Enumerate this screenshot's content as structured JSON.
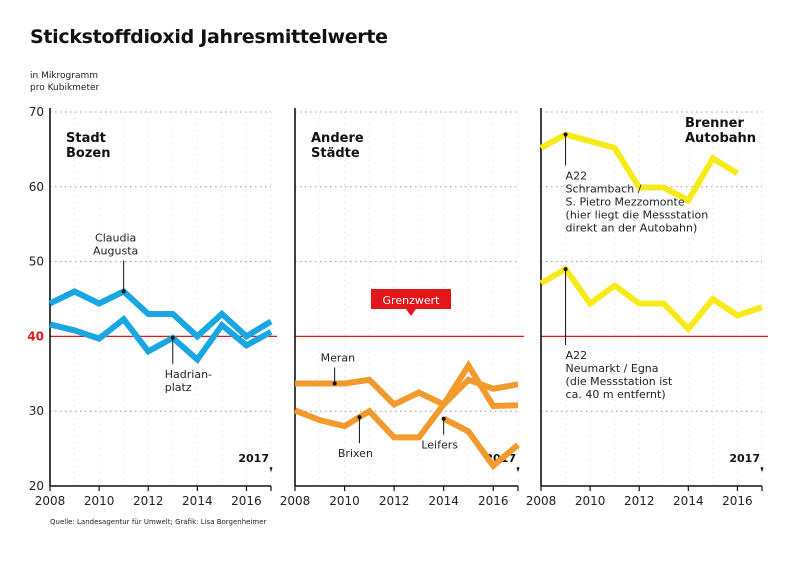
{
  "title": "Stickstoffdioxid Jahresmittelwerte",
  "unit_line1": "in Mikrogramm",
  "unit_line2": "pro Kubikmeter",
  "source": "Quelle: Landesagentur für Umwelt; Grafik: Lisa Borgenheimer",
  "chart_data": [
    {
      "type": "line",
      "panel_title": [
        "Stadt",
        "Bozen"
      ],
      "color": "#1aa6e0",
      "ylim": [
        20,
        70
      ],
      "xlim": [
        2008,
        2017
      ],
      "yticks": [
        20,
        30,
        40,
        50,
        60,
        70
      ],
      "xticks": [
        2008,
        2010,
        2012,
        2014,
        2016
      ],
      "end_label": "2017",
      "series": [
        {
          "name": "Claudia Augusta",
          "label": [
            "Claudia",
            "Augusta"
          ],
          "marker_year": 2011,
          "x": [
            2008,
            2009,
            2010,
            2011,
            2012,
            2013,
            2014,
            2015,
            2016,
            2017
          ],
          "values": [
            44.4,
            46,
            44.4,
            46,
            43,
            43,
            40,
            43,
            40,
            42
          ]
        },
        {
          "name": "Hadrianplatz",
          "label": [
            "Hadrian-",
            "platz"
          ],
          "marker_year": 2013,
          "x": [
            2008,
            2009,
            2010,
            2011,
            2012,
            2013,
            2014,
            2015,
            2016,
            2017
          ],
          "values": [
            41.6,
            40.8,
            39.7,
            42.3,
            38,
            39.8,
            36.9,
            41.5,
            38.8,
            40.6
          ]
        }
      ]
    },
    {
      "type": "line",
      "panel_title": [
        "Andere",
        "Städte"
      ],
      "color": "#f39a2c",
      "ylim": [
        20,
        70
      ],
      "xlim": [
        2008,
        2017
      ],
      "xticks": [
        2008,
        2010,
        2012,
        2014,
        2016
      ],
      "end_label": "2017",
      "series": [
        {
          "name": "Meran",
          "label": [
            "Meran"
          ],
          "marker_year": 2009.6,
          "x": [
            2008,
            2009,
            2010,
            2011,
            2012,
            2013,
            2014,
            2015,
            2016,
            2017
          ],
          "values": [
            33.7,
            33.7,
            33.7,
            34.2,
            30.9,
            32.5,
            30.9,
            34.2,
            33,
            33.6
          ]
        },
        {
          "name": "Brixen",
          "label": [
            "Brixen"
          ],
          "marker_year": 2010.6,
          "x": [
            2008,
            2009,
            2010,
            2011,
            2012,
            2013,
            2014,
            2015,
            2016,
            2017
          ],
          "values": [
            30.1,
            28.8,
            28,
            30,
            26.5,
            26.5,
            30.9,
            36.1,
            30.7,
            30.8
          ]
        },
        {
          "name": "Leifers",
          "label": [
            "Leifers"
          ],
          "marker_year": 2014,
          "x": [
            2014,
            2015,
            2016,
            2017
          ],
          "values": [
            29,
            27.3,
            22.7,
            25.5
          ]
        }
      ]
    },
    {
      "type": "line",
      "panel_title": [
        "Brenner",
        "Autobahn"
      ],
      "color": "#f7ea1a",
      "ylim": [
        20,
        70
      ],
      "xlim": [
        2008,
        2017
      ],
      "xticks": [
        2008,
        2010,
        2012,
        2014,
        2016
      ],
      "end_label": "2017",
      "series": [
        {
          "name": "A22 Schrambach / S. Pietro Mezzomonte",
          "label": [
            "A22",
            "Schrambach /",
            "S. Pietro Mezzomonte",
            "(hier liegt die Messstation",
            "direkt an der Autobahn)"
          ],
          "marker_year": 2009,
          "x": [
            2008,
            2009,
            2010,
            2011,
            2012,
            2013,
            2014,
            2015,
            2016
          ],
          "values": [
            65.2,
            67,
            66.1,
            65.2,
            59.9,
            59.9,
            58.2,
            63.8,
            61.8
          ]
        },
        {
          "name": "A22 Neumarkt / Egna",
          "label": [
            "A22",
            "Neumarkt / Egna",
            "(die Messstation ist",
            "ca. 40 m entfernt)"
          ],
          "marker_year": 2009,
          "x": [
            2008,
            2009,
            2010,
            2011,
            2012,
            2013,
            2014,
            2015,
            2016,
            2017
          ],
          "values": [
            47.1,
            49,
            44.4,
            46.8,
            44.4,
            44.4,
            41,
            45,
            42.8,
            43.9
          ]
        }
      ]
    }
  ],
  "limit": {
    "label": "Grenzwert",
    "value": 40,
    "color": "#e3161b"
  }
}
